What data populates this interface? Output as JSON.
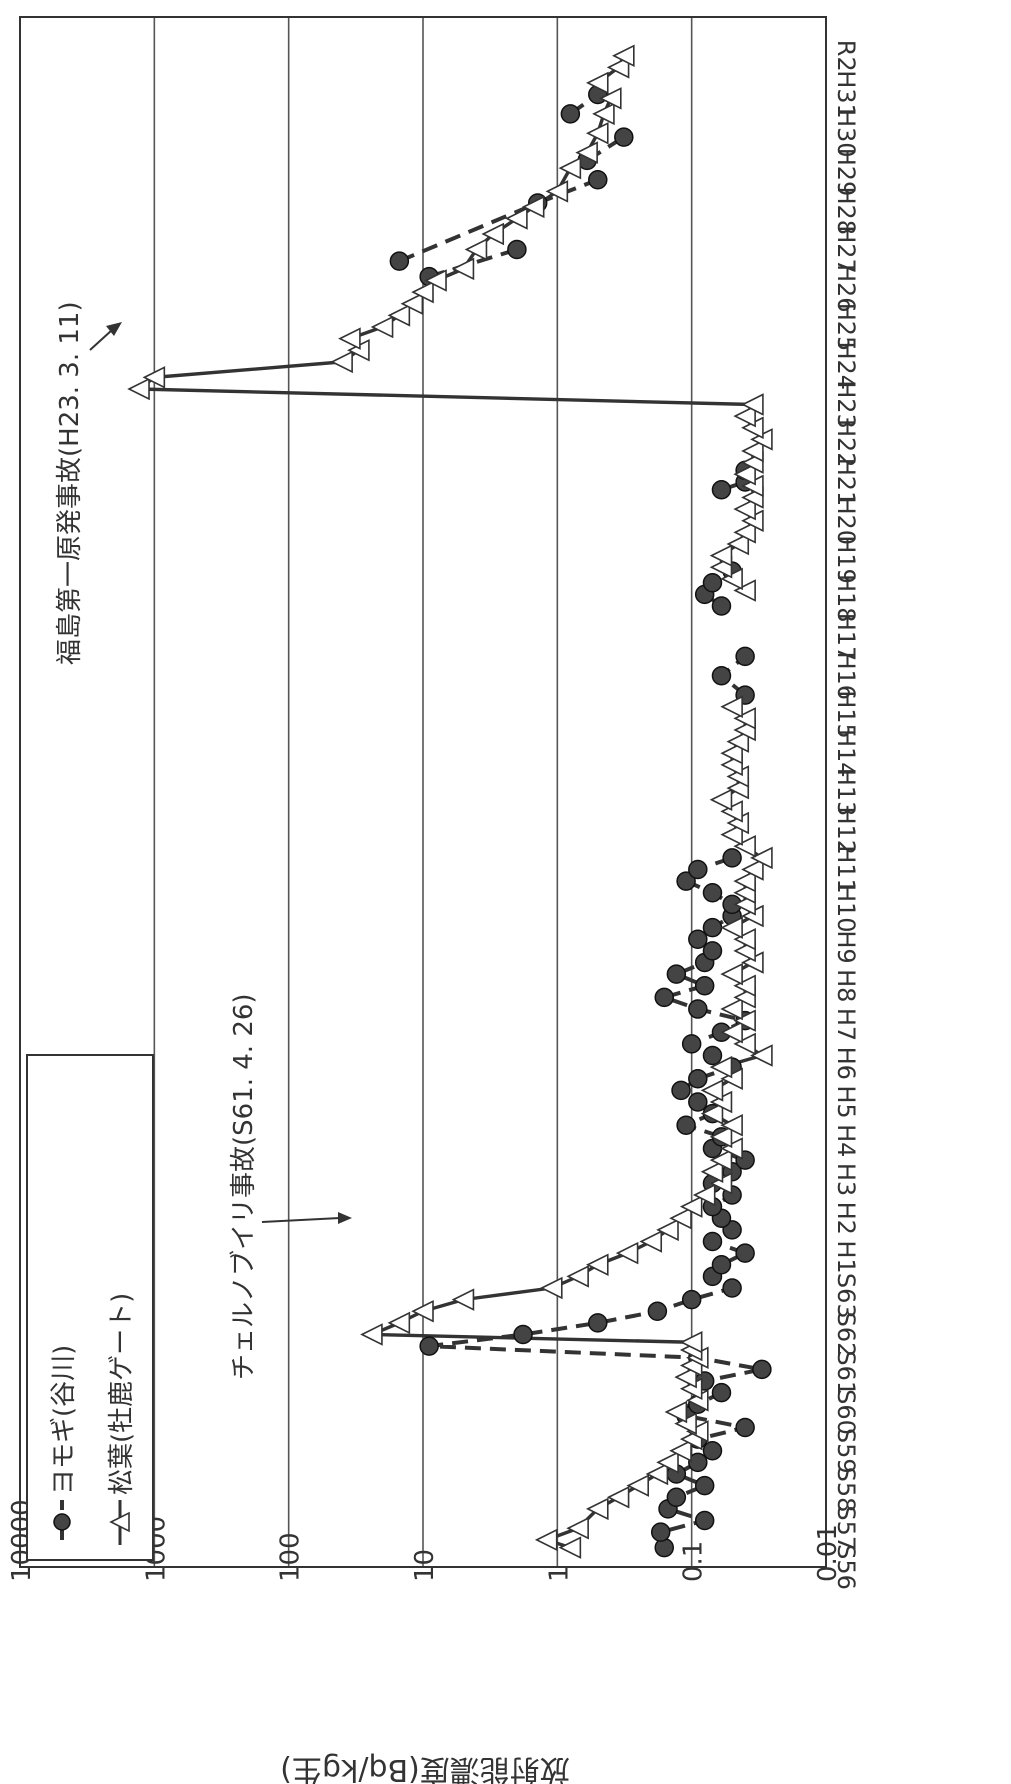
{
  "chart_data": {
    "type": "line",
    "orientation": "rotated-90-clockwise",
    "ylabel": "放射能濃度(Bq/kg生)",
    "yscale": "log",
    "ylim": [
      0.01,
      10000
    ],
    "y_ticks": [
      "10000",
      "1000",
      "100",
      "10",
      "1",
      "0.1",
      "0.01"
    ],
    "grid": true,
    "legend_position": "top-left",
    "x": [
      "S56",
      "S57",
      "S58",
      "S59",
      "S60",
      "S61",
      "S62",
      "S63",
      "H1",
      "H2",
      "H3",
      "H4",
      "H5",
      "H6",
      "H7",
      "H8",
      "H9",
      "H10",
      "H11",
      "H12",
      "H13",
      "H14",
      "H15",
      "H16",
      "H17",
      "H18",
      "H19",
      "H20",
      "H21",
      "H22",
      "H23",
      "H24",
      "H25",
      "H26",
      "H27",
      "H28",
      "H29",
      "H30",
      "H31",
      "R2"
    ],
    "series": [
      {
        "name": "ヨモギ(谷川)",
        "marker": "filled-circle",
        "line": "dashed",
        "color": "#333333",
        "segments": [
          [
            [
              0.5,
              0.16
            ],
            [
              0.9,
              0.17
            ],
            [
              1.2,
              0.08
            ],
            [
              1.5,
              0.15
            ],
            [
              1.8,
              0.13
            ],
            [
              2.1,
              0.08
            ],
            [
              2.4,
              0.13
            ],
            [
              2.7,
              0.09
            ],
            [
              3.0,
              0.07
            ],
            [
              3.3,
              0.09
            ],
            [
              3.6,
              0.04
            ],
            [
              3.9,
              0.11
            ],
            [
              4.2,
              0.09
            ],
            [
              4.5,
              0.06
            ],
            [
              4.8,
              0.08
            ],
            [
              5.1,
              0.03
            ],
            [
              5.4,
              0.09
            ],
            [
              5.7,
              9.0
            ],
            [
              6.0,
              1.8
            ],
            [
              6.3,
              0.5
            ],
            [
              6.6,
              0.18
            ],
            [
              6.9,
              0.1
            ],
            [
              7.2,
              0.05
            ],
            [
              7.5,
              0.07
            ],
            [
              7.8,
              0.06
            ],
            [
              8.1,
              0.04
            ],
            [
              8.4,
              0.07
            ],
            [
              8.7,
              0.05
            ],
            [
              9.0,
              0.06
            ],
            [
              9.3,
              0.07
            ],
            [
              9.6,
              0.05
            ],
            [
              9.9,
              0.07
            ],
            [
              10.2,
              0.05
            ],
            [
              10.5,
              0.04
            ],
            [
              10.8,
              0.07
            ],
            [
              11.1,
              0.06
            ],
            [
              11.4,
              0.11
            ],
            [
              11.7,
              0.07
            ],
            [
              12.0,
              0.09
            ],
            [
              12.3,
              0.12
            ],
            [
              12.6,
              0.09
            ],
            [
              12.9,
              0.05
            ],
            [
              13.2,
              0.07
            ],
            [
              13.5,
              0.1
            ],
            [
              13.8,
              0.06
            ],
            [
              14.1,
              0.04
            ],
            [
              14.4,
              0.09
            ],
            [
              14.7,
              0.16
            ],
            [
              15.0,
              0.08
            ],
            [
              15.3,
              0.13
            ],
            [
              15.6,
              0.08
            ],
            [
              15.9,
              0.07
            ],
            [
              16.2,
              0.09
            ],
            [
              16.5,
              0.07
            ],
            [
              16.8,
              0.05
            ],
            [
              17.1,
              0.05
            ],
            [
              17.4,
              0.07
            ],
            [
              17.7,
              0.11
            ],
            [
              18.0,
              0.09
            ],
            [
              18.3,
              0.05
            ]
          ],
          [
            [
              22.5,
              0.04
            ],
            [
              23.0,
              0.06
            ],
            [
              23.5,
              0.04
            ]
          ],
          [
            [
              24.8,
              0.06
            ],
            [
              25.1,
              0.08
            ],
            [
              25.4,
              0.07
            ],
            [
              25.7,
              0.05
            ]
          ],
          [
            [
              27.8,
              0.06
            ],
            [
              28.0,
              0.04
            ],
            [
              28.3,
              0.04
            ]
          ],
          [
            [
              33.3,
              9.0
            ],
            [
              34.0,
              2.0
            ]
          ],
          [
            [
              33.7,
              15.0
            ],
            [
              35.2,
              1.4
            ],
            [
              35.8,
              0.5
            ]
          ],
          [
            [
              36.3,
              0.6
            ],
            [
              36.9,
              0.32
            ]
          ],
          [
            [
              37.5,
              0.8
            ],
            [
              38.0,
              0.5
            ]
          ]
        ]
      },
      {
        "name": "松葉(牡鹿ゲート)",
        "marker": "open-triangle",
        "line": "solid",
        "color": "#333333",
        "segments": [
          [
            [
              0.5,
              0.8
            ],
            [
              0.7,
              1.2
            ],
            [
              1.0,
              0.7
            ],
            [
              1.5,
              0.5
            ],
            [
              1.8,
              0.35
            ],
            [
              2.1,
              0.25
            ],
            [
              2.4,
              0.18
            ],
            [
              2.7,
              0.15
            ],
            [
              3.0,
              0.12
            ],
            [
              3.3,
              0.1
            ],
            [
              3.5,
              0.09
            ],
            [
              3.7,
              0.11
            ],
            [
              4.0,
              0.13
            ],
            [
              4.3,
              0.09
            ],
            [
              4.6,
              0.1
            ],
            [
              4.9,
              0.11
            ],
            [
              5.2,
              0.1
            ],
            [
              5.4,
              0.09
            ],
            [
              5.6,
              0.1
            ],
            [
              5.8,
              0.1
            ],
            [
              6.0,
              24.0
            ],
            [
              6.3,
              15.0
            ],
            [
              6.6,
              10.0
            ],
            [
              6.9,
              5.0
            ],
            [
              7.2,
              1.1
            ],
            [
              7.5,
              0.7
            ],
            [
              7.8,
              0.5
            ],
            [
              8.1,
              0.3
            ],
            [
              8.4,
              0.2
            ],
            [
              8.7,
              0.15
            ],
            [
              9.0,
              0.12
            ],
            [
              9.3,
              0.1
            ],
            [
              9.6,
              0.08
            ],
            [
              9.9,
              0.06
            ],
            [
              10.2,
              0.07
            ],
            [
              10.5,
              0.06
            ],
            [
              10.8,
              0.05
            ],
            [
              11.1,
              0.06
            ],
            [
              11.4,
              0.05
            ],
            [
              11.7,
              0.07
            ],
            [
              12.0,
              0.06
            ],
            [
              12.3,
              0.07
            ],
            [
              12.6,
              0.05
            ],
            [
              12.9,
              0.06
            ],
            [
              13.2,
              0.03
            ],
            [
              13.5,
              0.04
            ],
            [
              13.8,
              0.05
            ],
            [
              14.1,
              0.04
            ],
            [
              14.4,
              0.05
            ],
            [
              14.7,
              0.04
            ],
            [
              15.0,
              0.04
            ],
            [
              15.3,
              0.05
            ],
            [
              15.6,
              0.035
            ],
            [
              15.9,
              0.04
            ],
            [
              16.2,
              0.04
            ],
            [
              16.5,
              0.05
            ],
            [
              16.8,
              0.035
            ],
            [
              17.1,
              0.04
            ],
            [
              17.4,
              0.04
            ],
            [
              17.7,
              0.04
            ],
            [
              18.0,
              0.035
            ],
            [
              18.3,
              0.03
            ],
            [
              18.6,
              0.04
            ],
            [
              18.9,
              0.05
            ],
            [
              19.2,
              0.045
            ],
            [
              19.5,
              0.05
            ],
            [
              19.8,
              0.06
            ],
            [
              20.1,
              0.045
            ],
            [
              20.4,
              0.045
            ],
            [
              20.7,
              0.05
            ],
            [
              21.0,
              0.05
            ],
            [
              21.3,
              0.045
            ],
            [
              21.6,
              0.04
            ],
            [
              21.9,
              0.04
            ],
            [
              22.2,
              0.05
            ]
          ],
          [
            [
              25.2,
              0.04
            ],
            [
              25.5,
              0.05
            ],
            [
              25.8,
              0.06
            ],
            [
              26.1,
              0.06
            ],
            [
              26.4,
              0.045
            ],
            [
              26.7,
              0.04
            ],
            [
              27.0,
              0.035
            ],
            [
              27.3,
              0.04
            ],
            [
              27.6,
              0.035
            ],
            [
              27.9,
              0.035
            ],
            [
              28.2,
              0.04
            ],
            [
              28.5,
              0.035
            ],
            [
              28.8,
              0.035
            ],
            [
              29.1,
              0.03
            ],
            [
              29.4,
              0.035
            ],
            [
              29.7,
              0.04
            ],
            [
              30.0,
              0.035
            ],
            [
              30.4,
              1300.0
            ],
            [
              30.7,
              1000.0
            ],
            [
              31.1,
              40.0
            ],
            [
              31.4,
              30.0
            ],
            [
              31.7,
              35.0
            ],
            [
              32.0,
              20.0
            ],
            [
              32.3,
              15.0
            ],
            [
              32.6,
              12.0
            ],
            [
              32.9,
              10.0
            ],
            [
              33.2,
              8.0
            ],
            [
              33.5,
              5.0
            ],
            [
              34.0,
              4.0
            ],
            [
              34.4,
              3.0
            ],
            [
              34.8,
              2.0
            ],
            [
              35.1,
              1.5
            ],
            [
              35.5,
              1.0
            ],
            [
              36.1,
              0.8
            ],
            [
              36.5,
              0.6
            ],
            [
              37.0,
              0.5
            ],
            [
              37.5,
              0.45
            ],
            [
              37.9,
              0.4
            ],
            [
              38.3,
              0.5
            ],
            [
              38.7,
              0.35
            ],
            [
              39.0,
              0.32
            ]
          ]
        ]
      }
    ],
    "annotations": [
      {
        "text": "チェルノブイリ事故(S61. 4. 26)",
        "x": 6.0,
        "y": 24.0
      },
      {
        "text": "福島第一原発事故(H23. 3. 11)",
        "x": 30.4,
        "y": 1300.0
      }
    ]
  }
}
